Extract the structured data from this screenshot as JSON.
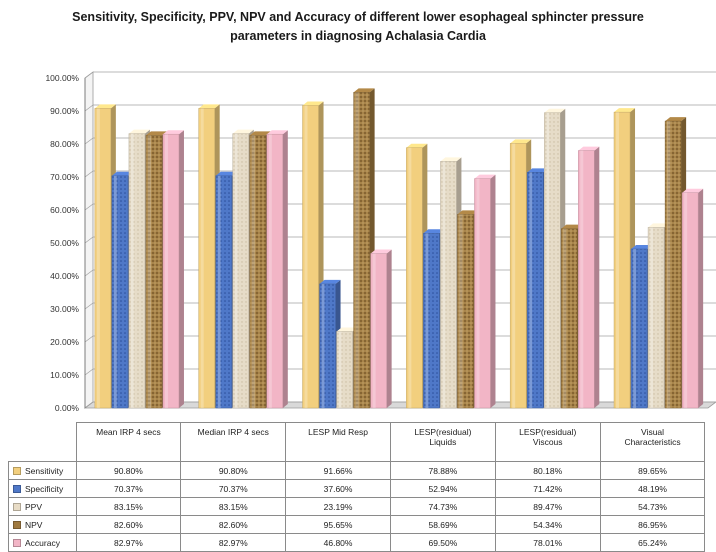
{
  "title_lines": [
    "Sensitivity, Specificity, PPV, NPV and Accuracy of different lower esophageal sphincter pressure",
    "parameters in diagnosing Achalasia Cardia"
  ],
  "chart_data": {
    "type": "bar",
    "title": "Sensitivity, Specificity, PPV, NPV and Accuracy of different lower esophageal sphincter pressure parameters in diagnosing Achalasia Cardia",
    "categories": [
      [
        "Mean IRP 4 secs"
      ],
      [
        "Median IRP 4 secs"
      ],
      [
        "LESP Mid Resp"
      ],
      [
        "LESP(residual)",
        "Liquids"
      ],
      [
        "LESP(residual)",
        "Viscous"
      ],
      [
        "Visual",
        "Characteristics"
      ]
    ],
    "series": [
      {
        "name": "Sensitivity",
        "color": "#f2cf7e",
        "values": [
          90.8,
          90.8,
          91.66,
          78.88,
          80.18,
          89.65
        ],
        "labels": [
          "90.80%",
          "90.80%",
          "91.66%",
          "78.88%",
          "80.18%",
          "89.65%"
        ]
      },
      {
        "name": "Specificity",
        "color": "#4f78c8",
        "values": [
          70.37,
          70.37,
          37.6,
          52.94,
          71.42,
          48.19
        ],
        "labels": [
          "70.37%",
          "70.37%",
          "37.60%",
          "52.94%",
          "71.42%",
          "48.19%"
        ]
      },
      {
        "name": "PPV",
        "color": "#e8dcc6",
        "values": [
          83.15,
          83.15,
          23.19,
          74.73,
          89.47,
          54.73
        ],
        "labels": [
          "83.15%",
          "83.15%",
          "23.19%",
          "74.73%",
          "89.47%",
          "54.73%"
        ]
      },
      {
        "name": "NPV",
        "color": "#a07a40",
        "values": [
          82.6,
          82.6,
          95.65,
          58.69,
          54.34,
          86.95
        ],
        "labels": [
          "82.60%",
          "82.60%",
          "95.65%",
          "58.69%",
          "54.34%",
          "86.95%"
        ]
      },
      {
        "name": "Accuracy",
        "color": "#f2b5c6",
        "values": [
          82.97,
          82.97,
          46.8,
          69.5,
          78.01,
          65.24
        ],
        "labels": [
          "82.97%",
          "82.97%",
          "46.80%",
          "69.50%",
          "78.01%",
          "65.24%"
        ]
      }
    ],
    "yticks": [
      "0.00%",
      "10.00%",
      "20.00%",
      "30.00%",
      "40.00%",
      "50.00%",
      "60.00%",
      "70.00%",
      "80.00%",
      "90.00%",
      "100.00%"
    ],
    "ylim": [
      0,
      100
    ],
    "grid": true,
    "legend": "table-below"
  }
}
